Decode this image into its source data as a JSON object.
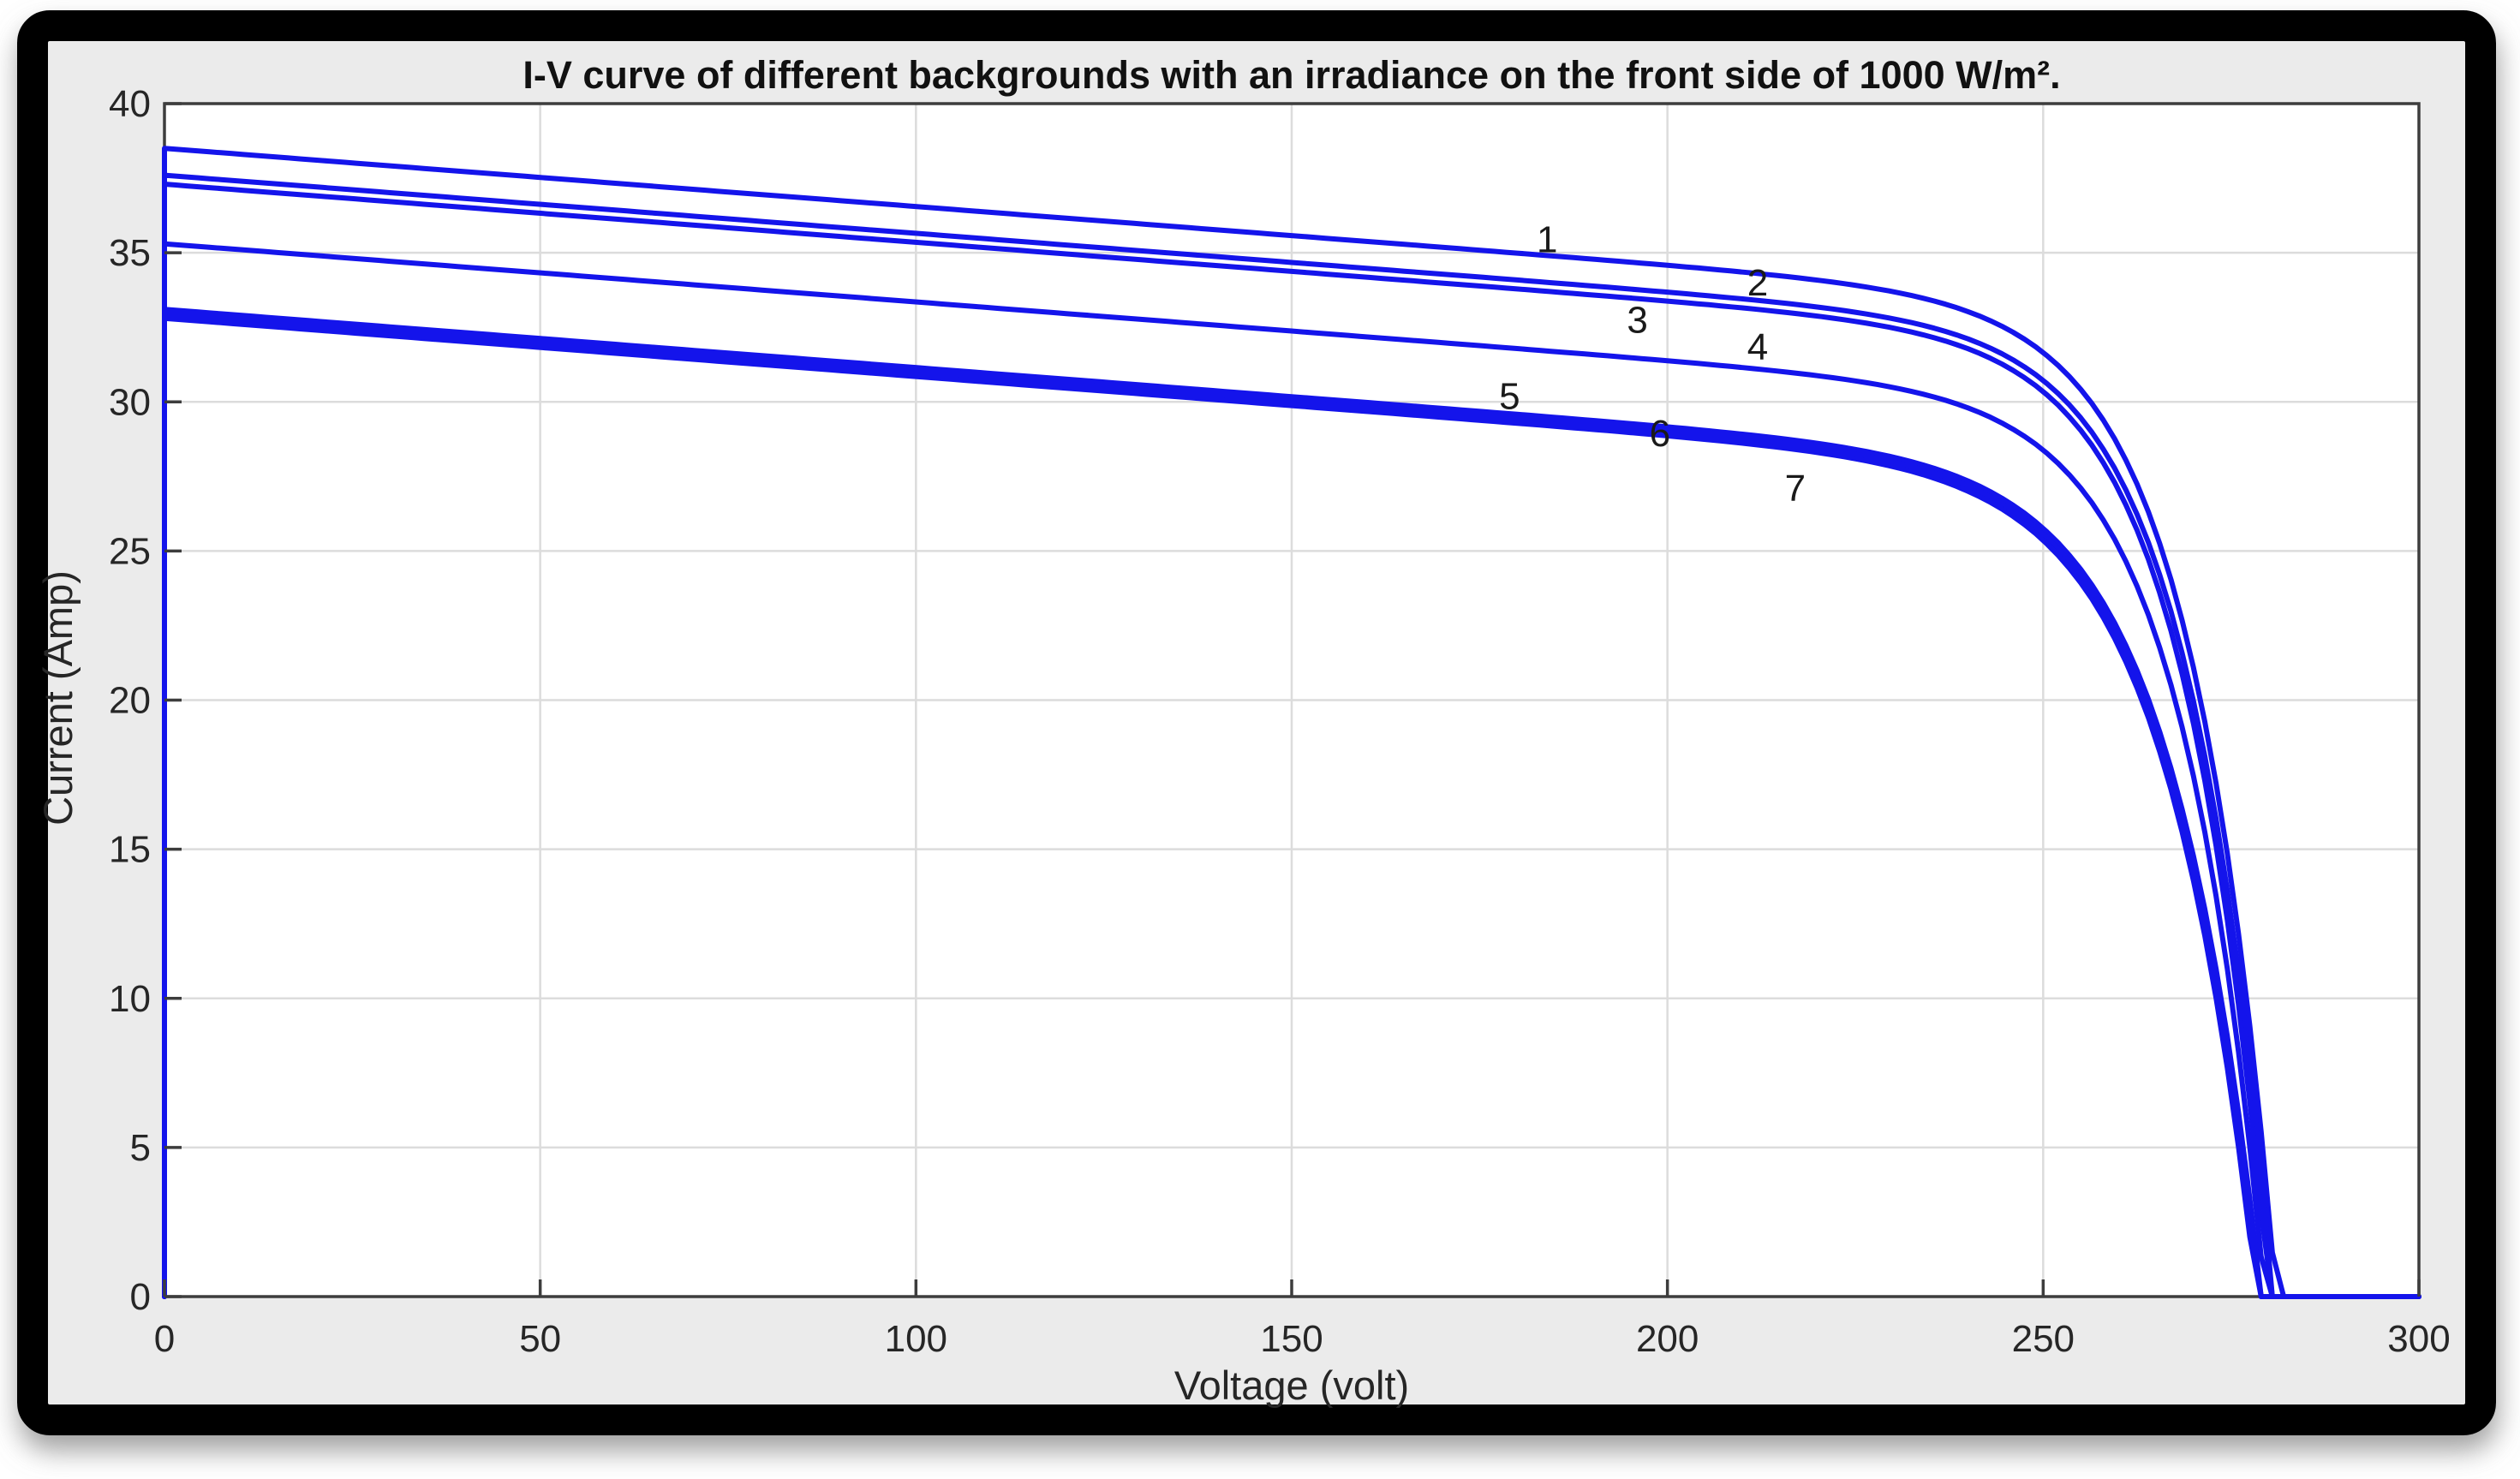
{
  "figure": {
    "background_color": "#ebebeb",
    "plot_background_color": "#ffffff",
    "frame_color": "#000000",
    "shadow_color": "#909090",
    "axis_color": "#3d3d3d",
    "grid_color": "#dcdcdc",
    "tick_text_color": "#262626"
  },
  "chart_data": {
    "type": "line",
    "title": "I-V curve of different backgrounds with an irradiance on the front side of 1000 W/m².",
    "xlabel": "Voltage (volt)",
    "ylabel": "Current (Amp)",
    "xlim": [
      0,
      300
    ],
    "ylim": [
      0,
      40
    ],
    "xticks": [
      0,
      50,
      100,
      150,
      200,
      250,
      300
    ],
    "yticks": [
      0,
      5,
      10,
      15,
      20,
      25,
      30,
      35,
      40
    ],
    "grid": true,
    "legend": false,
    "line_color": "#1414eb",
    "line_width": 6,
    "model": {
      "type": "linear_with_exponential_knee",
      "formula": "I(V) = max(0, Isc - s*V - (Isc - s*Voc) * exp((V - Voc)/w))",
      "note": "Each curve starts with a vertical segment at V=0 from I=0 up to Isc; beyond Voc the current is clamped to 0 so the trace runs along the x-axis to 300 V."
    },
    "series": [
      {
        "label": "1",
        "isc_amp": 38.5,
        "voc_volt": 281.0,
        "slope_amp_per_volt": 0.0195,
        "knee_width_volt": 11.0,
        "label_pos": {
          "v": 184,
          "i": 35.45
        }
      },
      {
        "label": "2",
        "isc_amp": 37.6,
        "voc_volt": 280.5,
        "slope_amp_per_volt": 0.0195,
        "knee_width_volt": 11.0,
        "label_pos": {
          "v": 212,
          "i": 34.0
        }
      },
      {
        "label": "3",
        "isc_amp": 37.3,
        "voc_volt": 280.0,
        "slope_amp_per_volt": 0.0195,
        "knee_width_volt": 11.0,
        "label_pos": {
          "v": 196,
          "i": 32.75
        }
      },
      {
        "label": "4",
        "isc_amp": 35.3,
        "voc_volt": 279.5,
        "slope_amp_per_volt": 0.0195,
        "knee_width_volt": 11.0,
        "label_pos": {
          "v": 212,
          "i": 31.85
        }
      },
      {
        "label": "5",
        "isc_amp": 33.1,
        "voc_volt": 279.0,
        "slope_amp_per_volt": 0.0195,
        "knee_width_volt": 12.0,
        "label_pos": {
          "v": 179,
          "i": 30.2
        }
      },
      {
        "label": "6",
        "isc_amp": 32.95,
        "voc_volt": 278.7,
        "slope_amp_per_volt": 0.0195,
        "knee_width_volt": 12.0,
        "label_pos": {
          "v": 199,
          "i": 28.95
        }
      },
      {
        "label": "7",
        "isc_amp": 32.8,
        "voc_volt": 278.4,
        "slope_amp_per_volt": 0.0195,
        "knee_width_volt": 12.0,
        "label_pos": {
          "v": 217,
          "i": 27.1
        }
      }
    ]
  }
}
